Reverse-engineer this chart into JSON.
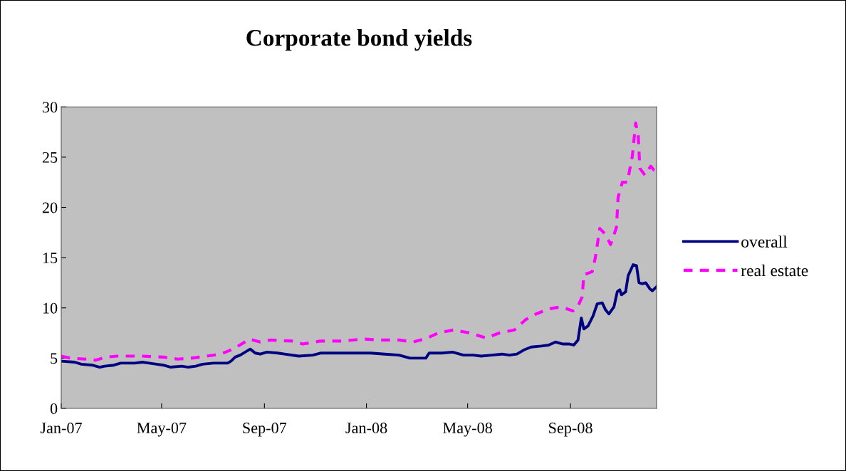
{
  "chart_data": {
    "type": "line",
    "title": "Corporate bond yields",
    "xlim": [
      "2007-01-01",
      "2008-12-13"
    ],
    "xticks": [
      {
        "value": "2007-01-01",
        "label": "Jan-07"
      },
      {
        "value": "2007-05-01",
        "label": "May-07"
      },
      {
        "value": "2007-09-01",
        "label": "Sep-07"
      },
      {
        "value": "2008-01-01",
        "label": "Jan-08"
      },
      {
        "value": "2008-05-01",
        "label": "May-08"
      },
      {
        "value": "2008-09-01",
        "label": "Sep-08"
      }
    ],
    "ylim": [
      0,
      30
    ],
    "yticks": [
      0,
      5,
      10,
      15,
      20,
      25,
      30
    ],
    "grid": false,
    "legend": "right",
    "marker": "none",
    "series": [
      {
        "name": "overall",
        "color": "#000080",
        "line_style": "solid",
        "x": [
          "2007-01-01",
          "2007-01-17",
          "2007-01-25",
          "2007-02-07",
          "2007-02-16",
          "2007-02-22",
          "2007-03-05",
          "2007-03-13",
          "2007-03-30",
          "2007-04-08",
          "2007-04-16",
          "2007-04-25",
          "2007-05-03",
          "2007-05-12",
          "2007-05-25",
          "2007-06-02",
          "2007-06-11",
          "2007-06-19",
          "2007-07-02",
          "2007-07-19",
          "2007-07-23",
          "2007-07-28",
          "2007-08-03",
          "2007-08-09",
          "2007-08-15",
          "2007-08-21",
          "2007-08-27",
          "2007-09-04",
          "2007-09-17",
          "2007-09-25",
          "2007-10-12",
          "2007-10-29",
          "2007-11-07",
          "2008-01-06",
          "2008-01-23",
          "2008-02-09",
          "2008-02-22",
          "2008-03-12",
          "2008-03-16",
          "2008-03-31",
          "2008-04-13",
          "2008-04-26",
          "2008-05-08",
          "2008-05-17",
          "2008-05-30",
          "2008-06-11",
          "2008-06-20",
          "2008-06-29",
          "2008-07-07",
          "2008-07-16",
          "2008-07-28",
          "2008-08-06",
          "2008-08-14",
          "2008-08-23",
          "2008-08-31",
          "2008-09-05",
          "2008-09-10",
          "2008-09-14",
          "2008-09-17",
          "2008-09-22",
          "2008-09-28",
          "2008-10-03",
          "2008-10-09",
          "2008-10-13",
          "2008-10-17",
          "2008-10-23",
          "2008-10-27",
          "2008-10-30",
          "2008-11-01",
          "2008-11-06",
          "2008-11-09",
          "2008-11-15",
          "2008-11-19",
          "2008-11-22",
          "2008-11-26",
          "2008-11-30",
          "2008-12-05",
          "2008-12-08",
          "2008-12-13"
        ],
        "values": [
          4.7,
          4.6,
          4.4,
          4.3,
          4.1,
          4.2,
          4.3,
          4.5,
          4.5,
          4.6,
          4.5,
          4.4,
          4.3,
          4.1,
          4.2,
          4.1,
          4.2,
          4.4,
          4.5,
          4.5,
          4.7,
          5.1,
          5.3,
          5.6,
          5.9,
          5.5,
          5.4,
          5.6,
          5.5,
          5.4,
          5.2,
          5.3,
          5.5,
          5.5,
          5.4,
          5.3,
          5.0,
          5.0,
          5.5,
          5.5,
          5.6,
          5.3,
          5.3,
          5.2,
          5.3,
          5.4,
          5.3,
          5.4,
          5.8,
          6.1,
          6.2,
          6.3,
          6.6,
          6.4,
          6.4,
          6.3,
          6.8,
          9.0,
          7.9,
          8.2,
          9.2,
          10.4,
          10.5,
          9.8,
          9.4,
          10.1,
          11.6,
          11.8,
          11.3,
          11.6,
          13.2,
          14.3,
          14.2,
          12.5,
          12.4,
          12.5,
          11.9,
          11.7,
          12.1
        ]
      },
      {
        "name": "real estate",
        "color": "#ff00ff",
        "line_style": "dashed",
        "x": [
          "2007-01-01",
          "2007-01-12",
          "2007-01-30",
          "2007-02-11",
          "2007-02-24",
          "2007-03-09",
          "2007-04-08",
          "2007-05-03",
          "2007-05-20",
          "2007-06-06",
          "2007-06-24",
          "2007-07-11",
          "2007-07-28",
          "2007-08-14",
          "2007-08-27",
          "2007-09-08",
          "2007-10-04",
          "2007-10-17",
          "2007-11-07",
          "2007-12-03",
          "2007-12-28",
          "2008-01-17",
          "2008-02-09",
          "2008-02-26",
          "2008-03-14",
          "2008-03-27",
          "2008-04-14",
          "2008-05-04",
          "2008-05-23",
          "2008-06-08",
          "2008-06-26",
          "2008-07-09",
          "2008-07-22",
          "2008-08-06",
          "2008-08-21",
          "2008-09-04",
          "2008-09-09",
          "2008-09-15",
          "2008-09-17",
          "2008-09-27",
          "2008-10-01",
          "2008-10-06",
          "2008-10-13",
          "2008-10-19",
          "2008-10-26",
          "2008-10-28",
          "2008-11-02",
          "2008-11-08",
          "2008-11-14",
          "2008-11-18",
          "2008-11-21",
          "2008-11-23",
          "2008-11-29",
          "2008-12-06",
          "2008-12-10",
          "2008-12-13"
        ],
        "values": [
          5.2,
          5.0,
          4.9,
          4.8,
          5.1,
          5.2,
          5.2,
          5.1,
          4.9,
          5.0,
          5.2,
          5.4,
          6.0,
          6.9,
          6.6,
          6.8,
          6.7,
          6.4,
          6.7,
          6.7,
          6.9,
          6.8,
          6.8,
          6.6,
          7.0,
          7.5,
          7.8,
          7.5,
          7.0,
          7.5,
          7.8,
          8.8,
          9.4,
          9.9,
          10.1,
          9.7,
          10.0,
          11.1,
          13.3,
          13.6,
          15.1,
          17.9,
          17.3,
          16.3,
          18.0,
          21.0,
          22.5,
          22.5,
          25.1,
          28.4,
          27.2,
          23.9,
          23.2,
          24.1,
          23.7,
          23.7
        ]
      }
    ]
  }
}
